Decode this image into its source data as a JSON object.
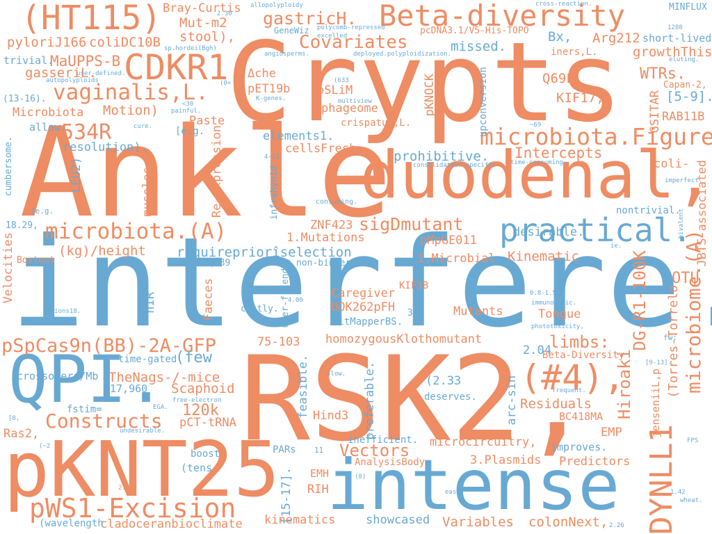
{
  "colors": {
    "orange": "#ee8c63",
    "blue": "#68a9d3",
    "background": "#ffffff"
  },
  "words": {
    "crypts": "Crypts",
    "ankle": "Ankle",
    "interfere": "interfere.",
    "rsk2": "RSK2,",
    "pknt25": "pKNT25",
    "duodenal": "duodenal,",
    "intense": "intense",
    "qpi": "QPI.",
    "beta_diversity": "Beta-diversity",
    "ht115": "(HT115)",
    "cdkr1": "CDKR1",
    "practical": "practical.",
    "pws1": "pWS1-Excision",
    "pspcas9n": "pSpCas9n(BB)-2A-GFP",
    "microbiota_a": "microbiota.(A)",
    "microbiota_figure": "microbiota.Figure",
    "vaginalis": "vaginalis,L.",
    "dynll1": "DYNLL1",
    "hash4": "(#4),",
    "covariates": "Covariates",
    "constructs": "Constructs",
    "gastrich": "gastricH.",
    "sigdmutant": "sigDmutant",
    "microbiome_a": "microbiome.(A)",
    "r534": "534R",
    "vectors": "Vectors",
    "mauppsb": "MaUPPS-B",
    "mutm2": "Mut-m2",
    "stool": "stool),",
    "colidc10b": "coliDC10B",
    "pylorij166": "pyloriJ166",
    "gasseril": "gasseriL.",
    "trivial": "trivial.",
    "microbiota_motion": "Microbiota",
    "motion": "Motion)",
    "allow": "allow.",
    "resolution": "resolution).",
    "elements1": "elements1.",
    "cellsfresh": "cellsFresh",
    "prohibitive": "prohibitive.",
    "intercepts": "Intercepts",
    "wtrs": "WTRs.",
    "kif17": "KIF17,",
    "q69l": "Q69L",
    "arg212": "Arg212",
    "bx": "Bx,",
    "missed": "missed.",
    "growththis": "growthThis",
    "iners": "iners,L.",
    "rab11b": "RAB11B",
    "e59": "[5-9].",
    "coli": "coli-",
    "desirable": "desirable.",
    "nontrivial": "nontrivial.",
    "kinematic": "Kinematic",
    "otu": "OTU",
    "jbts": "JBTS-associated",
    "dgr1": "DG-R1-100K",
    "hiroaki": "Hiroaki",
    "torres": "(Torres-Torrelo",
    "jensenii": "jenseniiL,p",
    "limbs": "limbs:",
    "tongue": "Tongue",
    "mutants": "Mutants",
    "caregiver": "Caregiver",
    "uok262": "UOK262pFH",
    "bitmapper": "BitMapperBS.",
    "homozygous": "homozygousKlothomutant",
    "v204": "2.04",
    "beta_div2": "Beta-Diversity",
    "residuals": "Residuals",
    "bc418ma": "BC418MA",
    "emp": "EMP",
    "microcircuitry": "microcircuitry,",
    "improves": "improves.",
    "predictors": "Predictors",
    "plasmids": "3.Plasmids",
    "hind3": "Hind3",
    "inefficient": "inefficient.",
    "analysisbody": "AnalysisBody",
    "emh": "EMH",
    "rih": "RIH",
    "kinematics": "kinematics",
    "showcased": "showcased",
    "variables": "Variables",
    "colonnext": "colonNext,",
    "cladoceran": "cladoceranbioclimate",
    "wavelength": "(wavelength",
    "tens": "(tens",
    "boost": "boost",
    "pars": "PARs",
    "e1517": "[15-17].",
    "ras2": "Ras2,",
    "pcttrna": "pCT-tRNA",
    "k120": "120k",
    "scaphoid": "Scaphoid",
    "thenags": "TheNags-/-mice",
    "few": "(few",
    "v17960": "17,960",
    "fstim": "fstim=",
    "timegated": "time-gated",
    "faeces": "Faeces",
    "nir": "nIR",
    "v75103": "75-103",
    "mutations": "1.Mutations",
    "microbial": "1.Microbial",
    "pmpge011": "pMpGE011",
    "znf423": "ZNF423",
    "requireprior": "requirepriorîselection",
    "kghheight": "(kg)/height",
    "reexpression": "Re-expression",
    "leu2": "LEU2)",
    "museles": "museles",
    "paste": "Paste",
    "eg1": "[e.g.",
    "che": "Δche",
    "pet19b": "pET19b",
    "pslim": "pSLiM",
    "phageome": "phageome",
    "crispatus": "crispatus,L.",
    "pknock": "pKNOCK",
    "upconversion": "upconversion",
    "gsitar": "GSITAR",
    "capan2": "Capan-2,",
    "shortlived": "short-lived",
    "minflux": "MINFLUX",
    "braycurtis": "Bray-Curtis",
    "genewiz": "GeneWiz",
    "pcdna": "pcDNA3.1/V5-His-TOPO",
    "velocities": "Velocities",
    "boston": "Boston)",
    "crossovers": "crossovers/Mb",
    "v1829": "18.29,",
    "cumbersome": "cumbersome.",
    "e1316": "(13-16).",
    "feasible": "feasible.",
    "preferable": "preferable.",
    "deserves": "deserves.",
    "v233": "(2.33",
    "arcsin": "arc-sin",
    "kif3b": "KIF3B",
    "v35": "3.5",
    "nonbinders": "non-binders.",
    "costly": "costly.",
    "userfriendly": "user-friendly",
    "infrahyoid": "infrahyoid",
    "v589": "(589",
    "consuming": "consuming.",
    "allopolyploidy": "allopolyploidy",
    "polycomb": "polycomb-repressed",
    "excelled": "excelled",
    "angiosperms": "angiosperms.",
    "deployed": "deployed.polyploidization.",
    "sphordei": "sp.hordei(Bgh)",
    "crossreaction": "cross-reaction.",
    "v1288": "1288",
    "autopolyploids": "autopolyploids",
    "userdefined": "user-defined.",
    "multiview": "multiview",
    "kgenes": "K-genes.",
    "v633": "(633",
    "painful": "painful.",
    "lt30": "<30",
    "cure": "cure.",
    "eg2": "[e.g.",
    "v414": "4-14",
    "consolidation": "consolidation-specific",
    "timeconsuming": "time-consuming.",
    "v69": "~69",
    "imperfect": "imperfect.",
    "bivalent": "bivalent",
    "eluting": "eluting.",
    "ie": "ie.",
    "v595": "5.95",
    "v400": "4.00",
    "regions18": "regions18.",
    "v0815": "0.8-1.5",
    "immunogenic": "immunogenic.",
    "phototoxicity": "phototoxicity,",
    "fw": "fw:",
    "e913": "[9-13].",
    "frequent": "frequent.",
    "slow": "slow.",
    "freeelectron": "free-electron",
    "ega": "EGA.",
    "undesirable": "undesirable.",
    "e8": "[8,",
    "v2": "(~2",
    "v11": "11",
    "v0": "(0)",
    "v207": "2.07",
    "easy": "easy.",
    "v142": "1.42",
    "wheat": "wheat.",
    "v226": "2.26",
    "fps": "FPS",
    "v230": "2.30",
    "zero": "(0="
  }
}
